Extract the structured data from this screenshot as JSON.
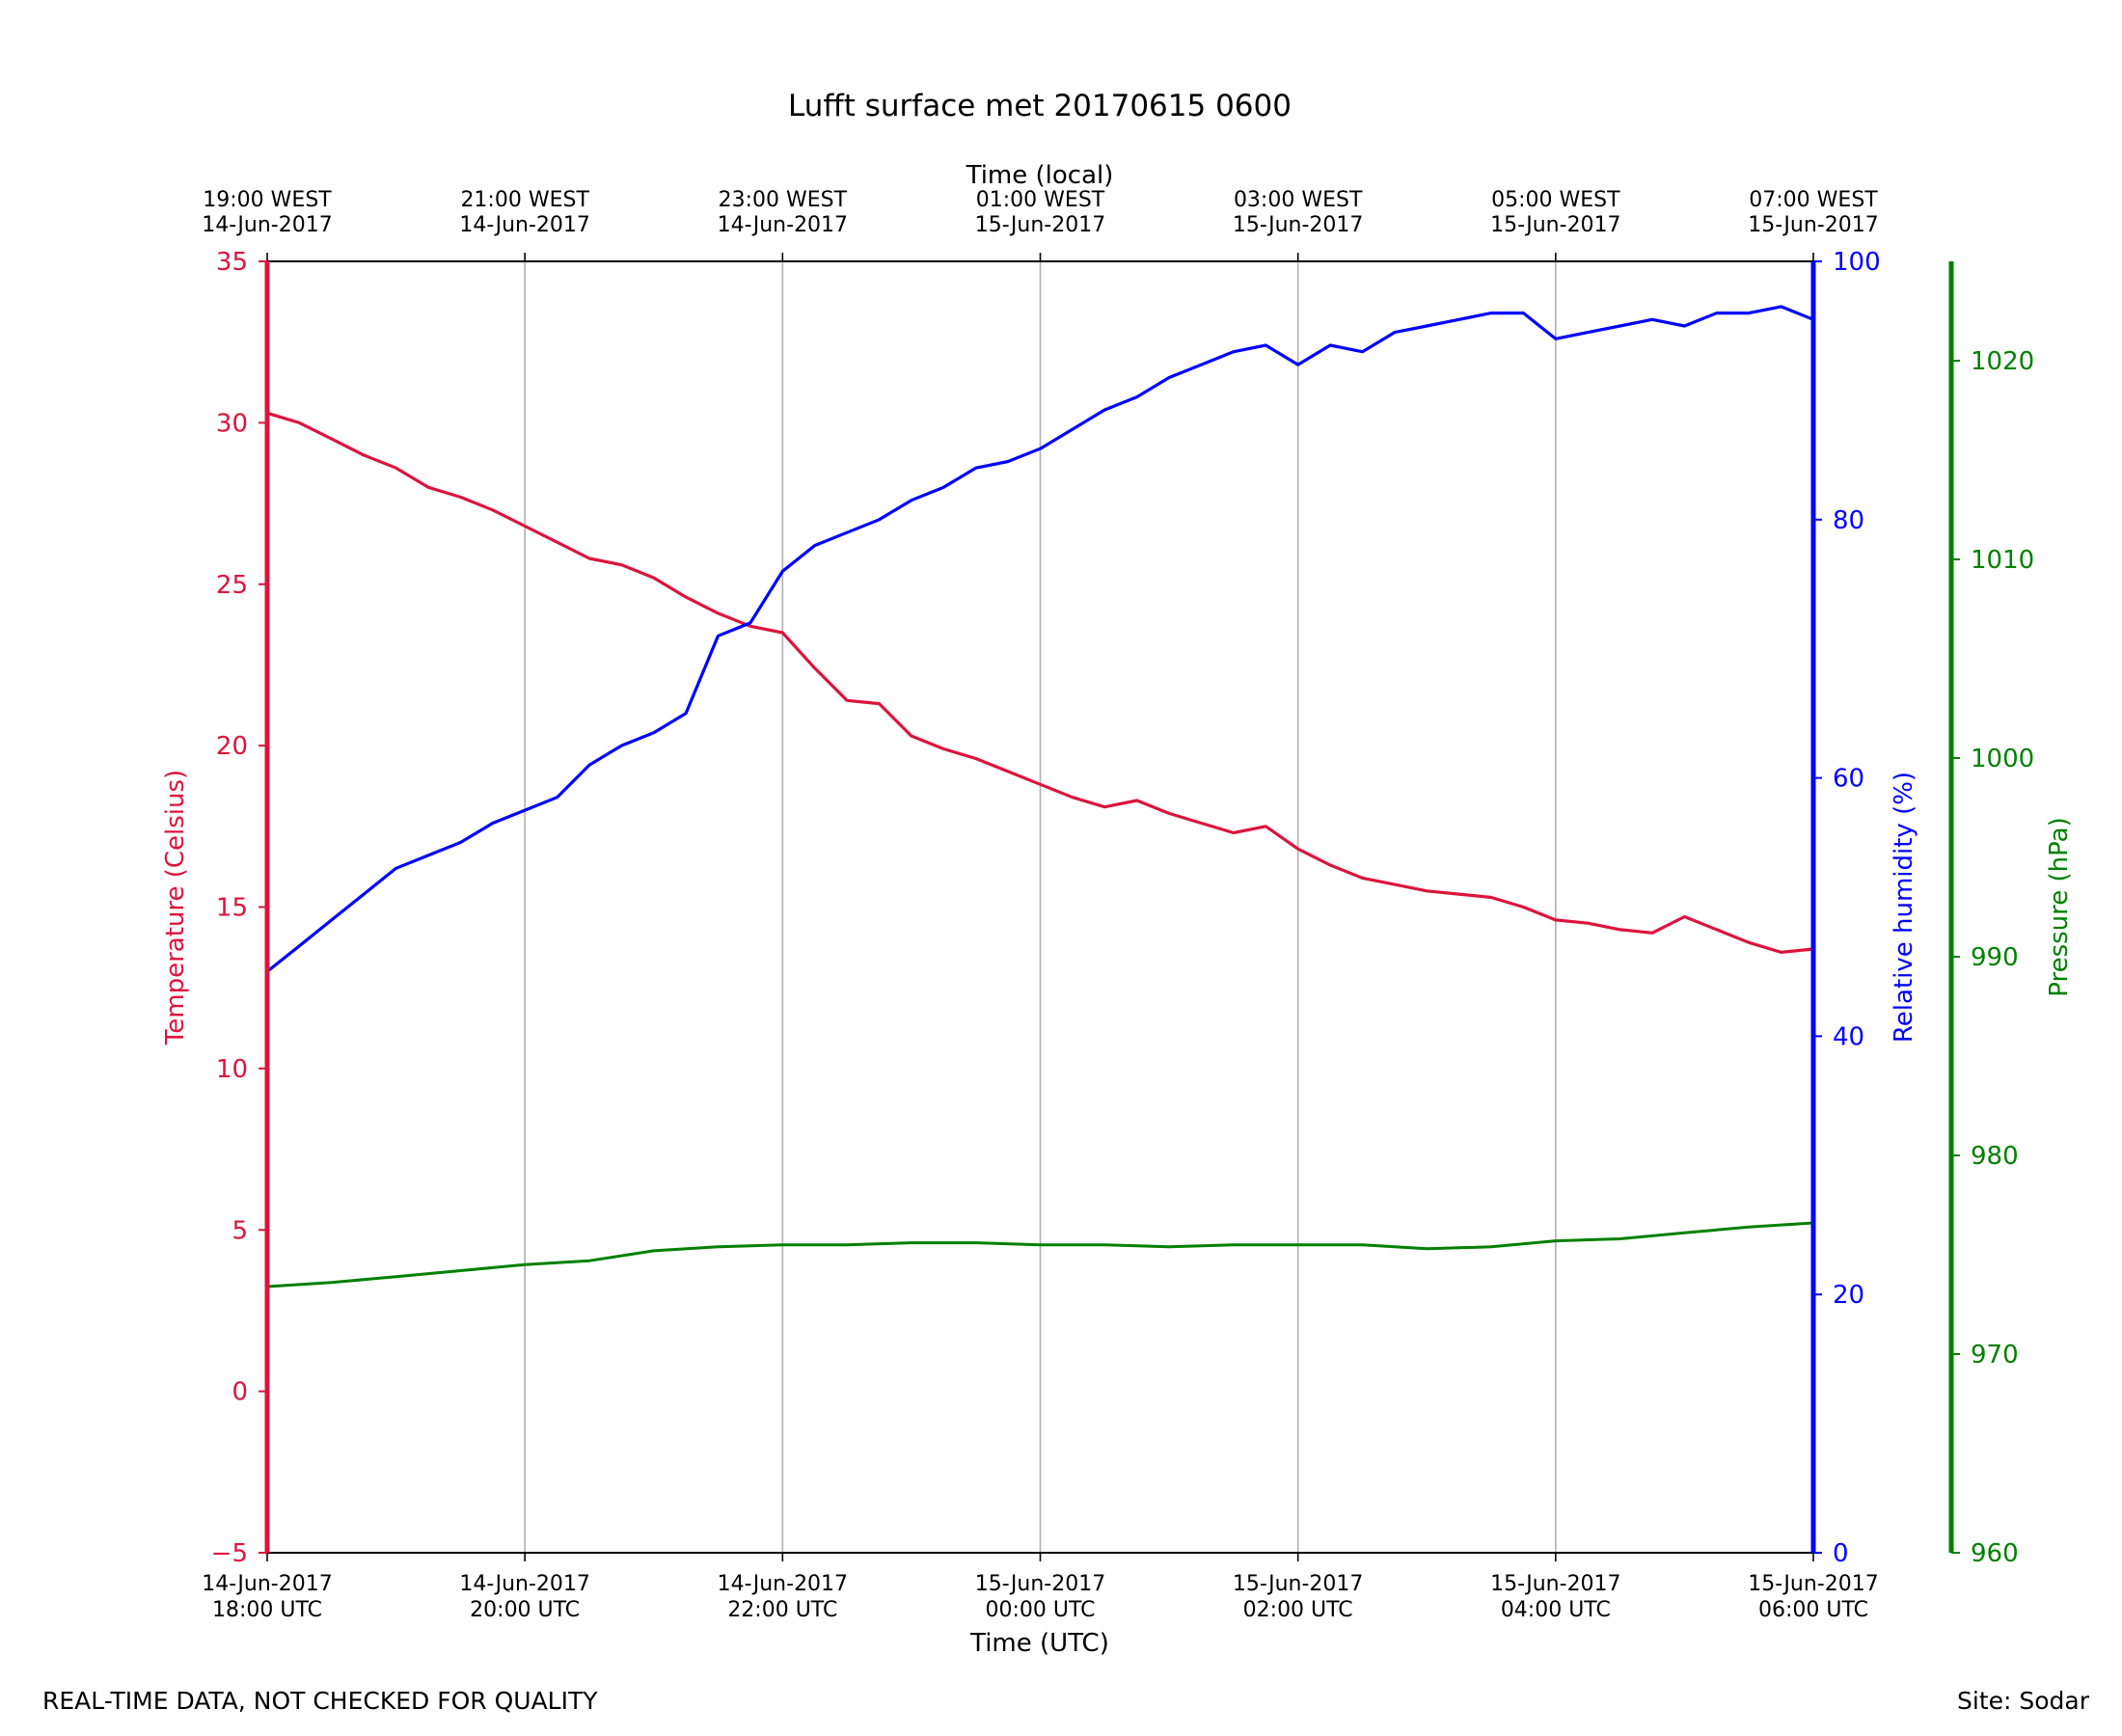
{
  "colors": {
    "temperature": "#dc143c",
    "humidity": "#0000ff",
    "pressure": "#008000",
    "grid": "#b0b0b0",
    "axis": "#000000"
  },
  "footer": {
    "left": "REAL-TIME DATA, NOT CHECKED FOR QUALITY",
    "right": "Site: Sodar"
  },
  "chart_data": {
    "type": "line",
    "title": "Lufft surface met 20170615 0600",
    "xlabel": "Time (UTC)",
    "x2label": "Time (local)",
    "xrange_hours": [
      0,
      12
    ],
    "x_start": "14-Jun-2017 18:00 UTC",
    "grid": "vertical at bottom ticks",
    "x_ticks_bottom": [
      {
        "h": 0,
        "line1": "14-Jun-2017",
        "line2": "18:00 UTC"
      },
      {
        "h": 2,
        "line1": "14-Jun-2017",
        "line2": "20:00 UTC"
      },
      {
        "h": 4,
        "line1": "14-Jun-2017",
        "line2": "22:00 UTC"
      },
      {
        "h": 6,
        "line1": "15-Jun-2017",
        "line2": "00:00 UTC"
      },
      {
        "h": 8,
        "line1": "15-Jun-2017",
        "line2": "02:00 UTC"
      },
      {
        "h": 10,
        "line1": "15-Jun-2017",
        "line2": "04:00 UTC"
      },
      {
        "h": 12,
        "line1": "15-Jun-2017",
        "line2": "06:00 UTC"
      }
    ],
    "x_ticks_top": [
      {
        "h": 0,
        "line1": "19:00 WEST",
        "line2": "14-Jun-2017"
      },
      {
        "h": 2,
        "line1": "21:00 WEST",
        "line2": "14-Jun-2017"
      },
      {
        "h": 4,
        "line1": "23:00 WEST",
        "line2": "14-Jun-2017"
      },
      {
        "h": 6,
        "line1": "01:00 WEST",
        "line2": "15-Jun-2017"
      },
      {
        "h": 8,
        "line1": "03:00 WEST",
        "line2": "15-Jun-2017"
      },
      {
        "h": 10,
        "line1": "05:00 WEST",
        "line2": "15-Jun-2017"
      },
      {
        "h": 12,
        "line1": "07:00 WEST",
        "line2": "15-Jun-2017"
      }
    ],
    "axes": [
      {
        "key": "temperature",
        "label": "Temperature (Celsius)",
        "range": [
          -5,
          35
        ],
        "ticks": [
          -5,
          0,
          5,
          10,
          15,
          20,
          25,
          30,
          35
        ],
        "tick_labels": [
          "−5",
          "0",
          "5",
          "10",
          "15",
          "20",
          "25",
          "30",
          "35"
        ],
        "side": "left"
      },
      {
        "key": "humidity",
        "label": "Relative humidity (%)",
        "range": [
          0,
          100
        ],
        "ticks": [
          0,
          20,
          40,
          60,
          80,
          100
        ],
        "tick_labels": [
          "0",
          "20",
          "40",
          "60",
          "80",
          "100"
        ],
        "side": "right"
      },
      {
        "key": "pressure",
        "label": "Pressure (hPa)",
        "range": [
          960,
          1025
        ],
        "ticks": [
          960,
          970,
          980,
          990,
          1000,
          1010,
          1020
        ],
        "tick_labels": [
          "960",
          "970",
          "980",
          "990",
          "1000",
          "1010",
          "1020"
        ],
        "side": "right-offset"
      }
    ],
    "series": [
      {
        "key": "temperature",
        "x_hours": [
          0,
          0.25,
          0.5,
          0.75,
          1.0,
          1.25,
          1.5,
          1.75,
          2.0,
          2.25,
          2.5,
          2.75,
          3.0,
          3.25,
          3.5,
          3.75,
          4.0,
          4.25,
          4.5,
          4.75,
          5.0,
          5.25,
          5.5,
          5.75,
          6.0,
          6.25,
          6.5,
          6.75,
          7.0,
          7.25,
          7.5,
          7.75,
          8.0,
          8.25,
          8.5,
          8.75,
          9.0,
          9.25,
          9.5,
          9.75,
          10.0,
          10.25,
          10.5,
          10.75,
          11.0,
          11.25,
          11.5,
          11.75,
          12.0
        ],
        "values": [
          30.3,
          30.0,
          29.5,
          29.0,
          28.6,
          28.0,
          27.7,
          27.3,
          26.8,
          26.3,
          25.8,
          25.6,
          25.2,
          24.6,
          24.1,
          23.7,
          23.5,
          22.4,
          21.4,
          21.3,
          20.3,
          19.9,
          19.6,
          19.2,
          18.8,
          18.4,
          18.1,
          18.3,
          17.9,
          17.6,
          17.3,
          17.5,
          16.8,
          16.3,
          15.9,
          15.7,
          15.5,
          15.4,
          15.3,
          15.0,
          14.6,
          14.5,
          14.3,
          14.2,
          14.7,
          14.3,
          13.9,
          13.6,
          13.7
        ],
        "range_note": "approx. readings from plot"
      },
      {
        "key": "humidity",
        "x_hours": [
          0,
          0.25,
          0.5,
          0.75,
          1.0,
          1.25,
          1.5,
          1.75,
          2.0,
          2.25,
          2.5,
          2.75,
          3.0,
          3.25,
          3.5,
          3.75,
          4.0,
          4.25,
          4.5,
          4.75,
          5.0,
          5.25,
          5.5,
          5.75,
          6.0,
          6.25,
          6.5,
          6.75,
          7.0,
          7.25,
          7.5,
          7.75,
          8.0,
          8.25,
          8.5,
          8.75,
          9.0,
          9.25,
          9.5,
          9.75,
          10.0,
          10.25,
          10.5,
          10.75,
          11.0,
          11.25,
          11.5,
          11.75,
          12.0
        ],
        "values": [
          45,
          47,
          49,
          51,
          53,
          54,
          55,
          56.5,
          57.5,
          58.5,
          61,
          62.5,
          63.5,
          65,
          71,
          72,
          76,
          78,
          79,
          80,
          81.5,
          82.5,
          84,
          84.5,
          85.5,
          87,
          88.5,
          89.5,
          91,
          92,
          93,
          93.5,
          92,
          93.5,
          93,
          94.5,
          95,
          95.5,
          96,
          96,
          94,
          94.5,
          95,
          95.5,
          95,
          96,
          96,
          96.5,
          95.5
        ],
        "range_note": "approx. readings from plot"
      },
      {
        "key": "pressure",
        "x_hours": [
          0,
          0.5,
          1.0,
          1.5,
          2.0,
          2.5,
          3.0,
          3.5,
          4.0,
          4.5,
          5.0,
          5.5,
          6.0,
          6.5,
          7.0,
          7.5,
          8.0,
          8.5,
          9.0,
          9.5,
          10.0,
          10.5,
          11.0,
          11.5,
          12.0
        ],
        "values": [
          973.4,
          973.6,
          973.9,
          974.2,
          974.5,
          974.7,
          975.2,
          975.4,
          975.5,
          975.5,
          975.6,
          975.6,
          975.5,
          975.5,
          975.4,
          975.5,
          975.5,
          975.5,
          975.3,
          975.4,
          975.7,
          975.8,
          976.1,
          976.4,
          976.6
        ],
        "range_note": "approx. readings from plot"
      }
    ]
  }
}
